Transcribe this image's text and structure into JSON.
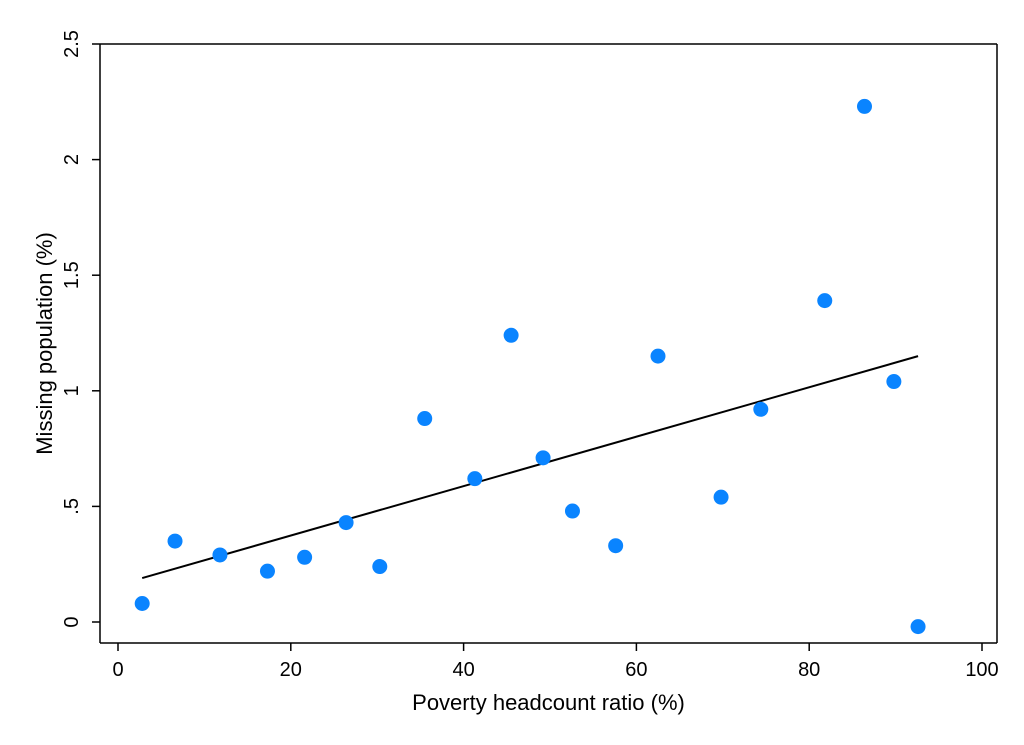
{
  "chart_data": {
    "type": "scatter",
    "xlabel": "Poverty headcount ratio (%)",
    "ylabel": "Missing population (%)",
    "xlim": [
      0,
      100
    ],
    "ylim": [
      0,
      2.5
    ],
    "x_ticks": [
      {
        "value": 0,
        "label": "0"
      },
      {
        "value": 20,
        "label": "20"
      },
      {
        "value": 40,
        "label": "40"
      },
      {
        "value": 60,
        "label": "60"
      },
      {
        "value": 80,
        "label": "80"
      },
      {
        "value": 100,
        "label": "100"
      }
    ],
    "y_ticks": [
      {
        "value": 0,
        "label": "0"
      },
      {
        "value": 0.5,
        "label": ".5"
      },
      {
        "value": 1,
        "label": "1"
      },
      {
        "value": 1.5,
        "label": "1.5"
      },
      {
        "value": 2,
        "label": "2"
      },
      {
        "value": 2.5,
        "label": "2.5"
      }
    ],
    "grid": false,
    "series": [
      {
        "kind": "points",
        "color": "#0a84ff",
        "points": [
          {
            "x": 2.8,
            "y": 0.08
          },
          {
            "x": 6.6,
            "y": 0.35
          },
          {
            "x": 11.8,
            "y": 0.29
          },
          {
            "x": 17.3,
            "y": 0.22
          },
          {
            "x": 21.6,
            "y": 0.28
          },
          {
            "x": 26.4,
            "y": 0.43
          },
          {
            "x": 30.3,
            "y": 0.24
          },
          {
            "x": 35.5,
            "y": 0.88
          },
          {
            "x": 41.3,
            "y": 0.62
          },
          {
            "x": 45.5,
            "y": 1.24
          },
          {
            "x": 49.2,
            "y": 0.71
          },
          {
            "x": 52.6,
            "y": 0.48
          },
          {
            "x": 57.6,
            "y": 0.33
          },
          {
            "x": 62.5,
            "y": 1.15
          },
          {
            "x": 69.8,
            "y": 0.54
          },
          {
            "x": 74.4,
            "y": 0.92
          },
          {
            "x": 81.8,
            "y": 1.39
          },
          {
            "x": 86.4,
            "y": 2.23
          },
          {
            "x": 89.8,
            "y": 1.04
          },
          {
            "x": 92.6,
            "y": -0.02
          }
        ]
      },
      {
        "kind": "fit-line",
        "color": "#000000",
        "points": [
          {
            "x": 2.8,
            "y": 0.19
          },
          {
            "x": 92.6,
            "y": 1.15
          }
        ]
      }
    ]
  }
}
